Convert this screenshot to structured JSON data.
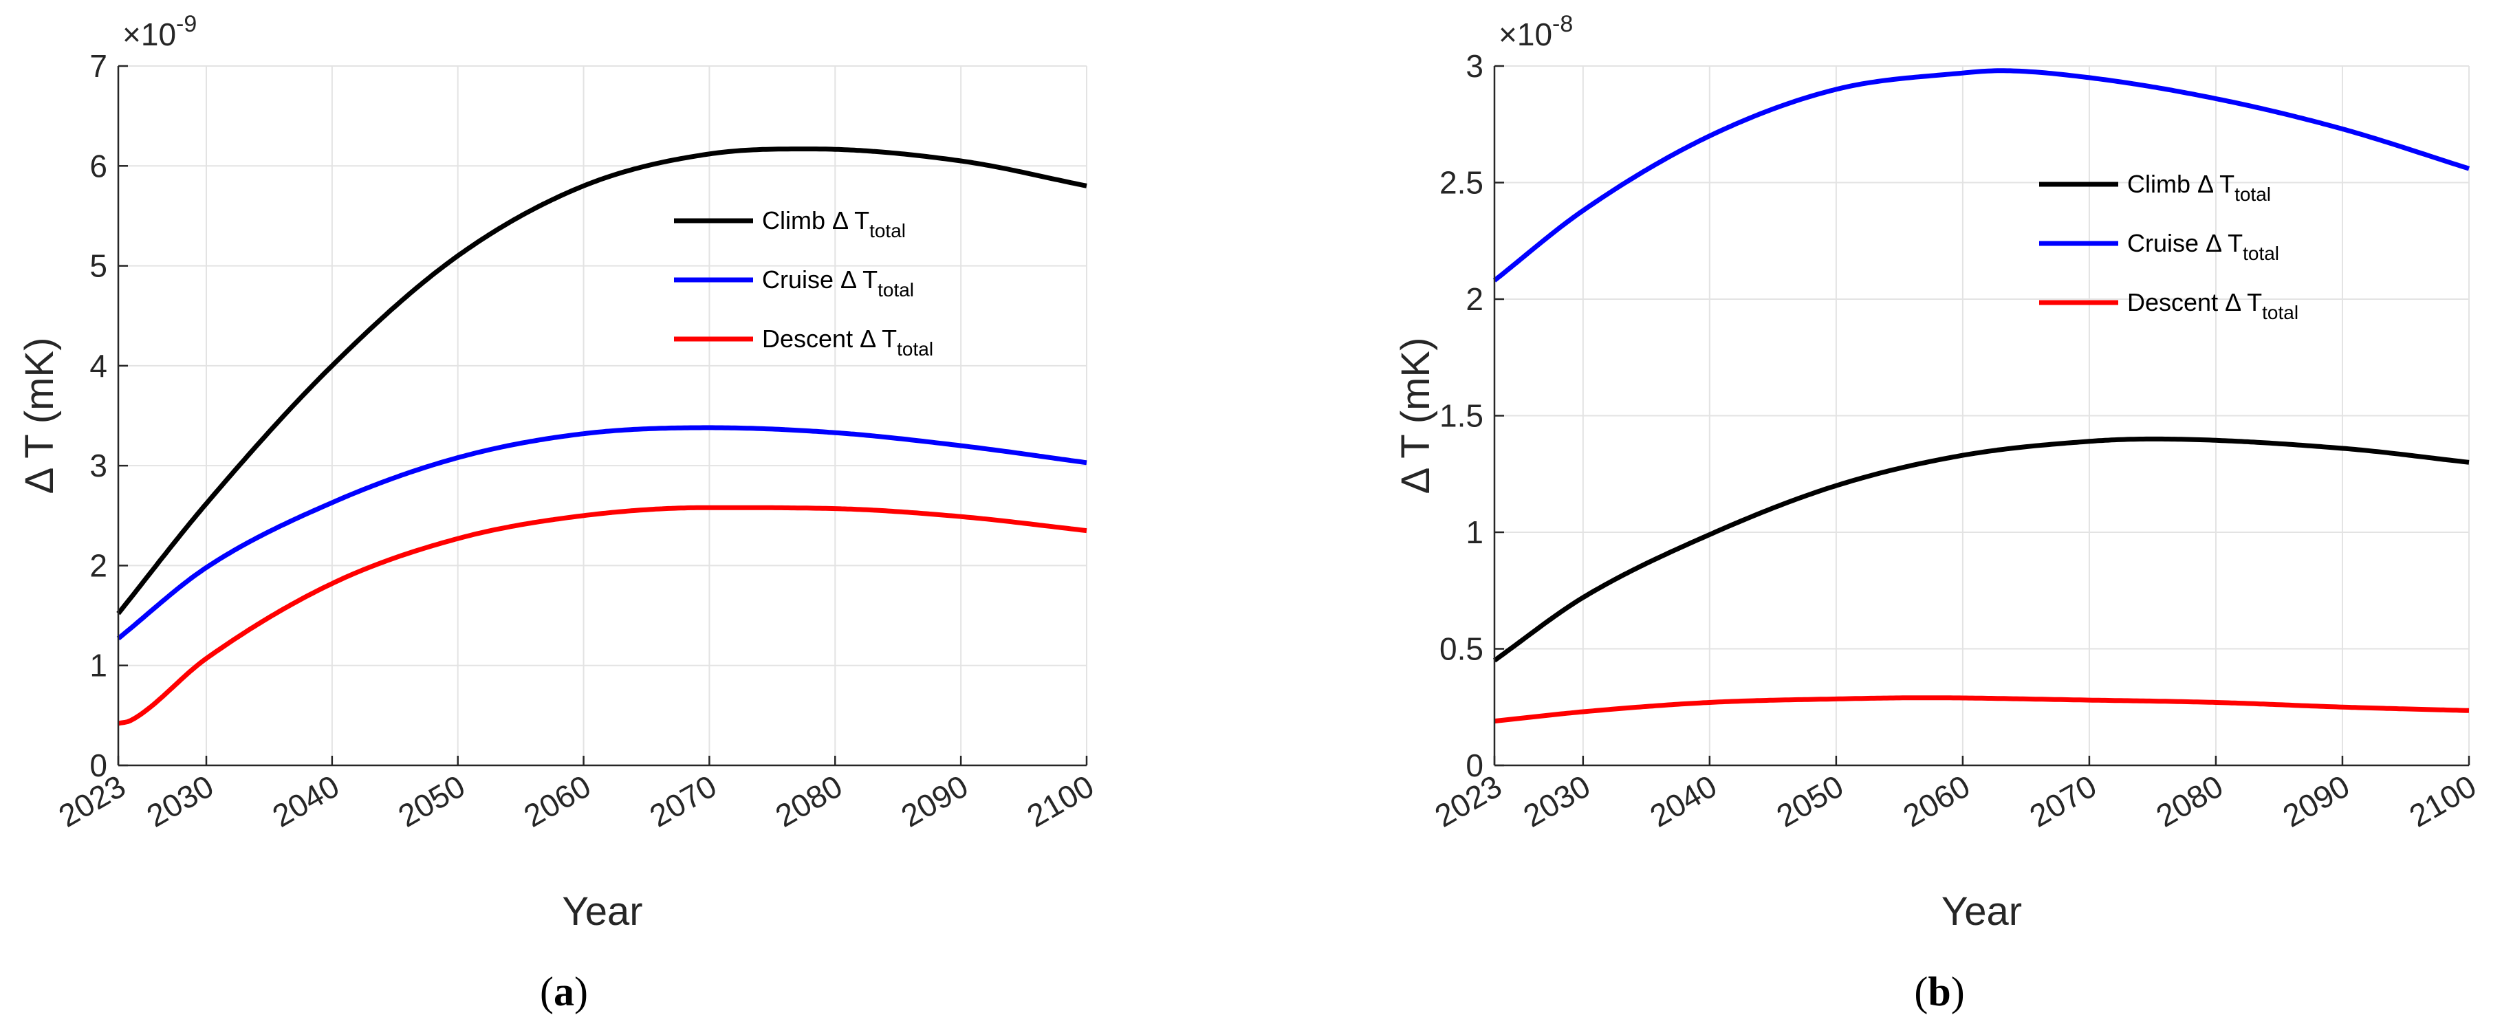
{
  "chart_data": [
    {
      "type": "line",
      "panel_label": "a",
      "xlabel": "Year",
      "ylabel": "Δ T (mK)",
      "y_exponent_base": "×10",
      "y_exponent_power": "-9",
      "xlim": [
        2023,
        2100
      ],
      "ylim": [
        0,
        7
      ],
      "xticks": [
        2023,
        2030,
        2040,
        2050,
        2060,
        2070,
        2080,
        2090,
        2100
      ],
      "yticks": [
        0,
        1,
        2,
        3,
        4,
        5,
        6,
        7
      ],
      "grid": true,
      "legend_position": "upper-right",
      "series": [
        {
          "name": "Climb",
          "color": "#000000",
          "x": [
            2023,
            2030,
            2040,
            2050,
            2060,
            2070,
            2078,
            2090,
            2100
          ],
          "values": [
            1.52,
            2.62,
            4.0,
            5.1,
            5.8,
            6.12,
            6.17,
            6.05,
            5.8
          ]
        },
        {
          "name": "Cruise",
          "color": "#0000ff",
          "x": [
            2023,
            2030,
            2040,
            2050,
            2060,
            2070,
            2080,
            2090,
            2100
          ],
          "values": [
            1.27,
            1.98,
            2.63,
            3.08,
            3.32,
            3.38,
            3.33,
            3.2,
            3.03
          ]
        },
        {
          "name": "Descent",
          "color": "#ff0000",
          "x": [
            2023,
            2024,
            2030,
            2040,
            2050,
            2060,
            2070,
            2080,
            2090,
            2100
          ],
          "values": [
            0.42,
            0.45,
            1.07,
            1.82,
            2.27,
            2.5,
            2.58,
            2.57,
            2.49,
            2.35
          ]
        }
      ]
    },
    {
      "type": "line",
      "panel_label": "b",
      "xlabel": "Year",
      "ylabel": "Δ T (mK)",
      "y_exponent_base": "×10",
      "y_exponent_power": "-8",
      "xlim": [
        2023,
        2100
      ],
      "ylim": [
        0,
        3
      ],
      "xticks": [
        2023,
        2030,
        2040,
        2050,
        2060,
        2070,
        2080,
        2090,
        2100
      ],
      "yticks": [
        0,
        0.5,
        1,
        1.5,
        2,
        2.5,
        3
      ],
      "grid": true,
      "legend_position": "upper-right",
      "series": [
        {
          "name": "Climb",
          "color": "#000000",
          "x": [
            2023,
            2030,
            2040,
            2050,
            2060,
            2070,
            2075,
            2090,
            2100
          ],
          "values": [
            0.45,
            0.72,
            0.99,
            1.2,
            1.33,
            1.39,
            1.4,
            1.36,
            1.3
          ]
        },
        {
          "name": "Cruise",
          "color": "#0000ff",
          "x": [
            2023,
            2030,
            2040,
            2050,
            2060,
            2063,
            2070,
            2080,
            2090,
            2100
          ],
          "values": [
            2.08,
            2.38,
            2.7,
            2.9,
            2.97,
            2.98,
            2.95,
            2.86,
            2.73,
            2.56
          ]
        },
        {
          "name": "Descent",
          "color": "#ff0000",
          "x": [
            2023,
            2030,
            2040,
            2050,
            2057,
            2070,
            2080,
            2090,
            2100
          ],
          "values": [
            0.19,
            0.23,
            0.27,
            0.285,
            0.29,
            0.28,
            0.27,
            0.25,
            0.235
          ]
        }
      ]
    }
  ],
  "legend": {
    "delta_symbol": "Δ",
    "t_letter": "T",
    "subscript": "total"
  }
}
